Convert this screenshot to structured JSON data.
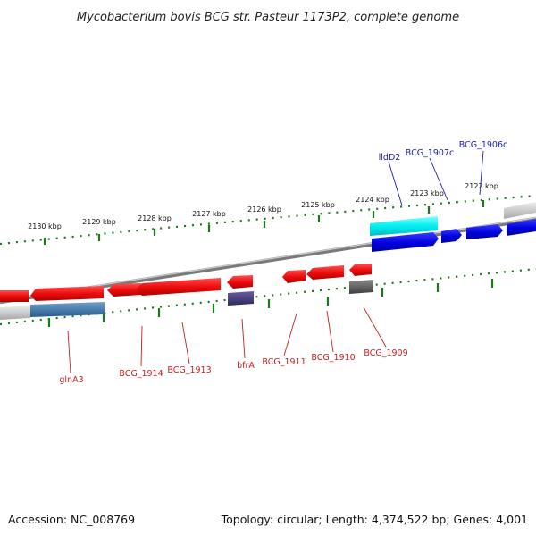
{
  "title": "Mycobacterium bovis BCG str. Pasteur 1173P2, complete genome",
  "footer": {
    "accession": "Accession: NC_008769",
    "summary": "Topology: circular; Length: 4,374,522 bp; Genes: 4,001"
  },
  "kbp_labels": [
    "2130 kbp",
    "2129 kbp",
    "2128 kbp",
    "2127 kbp",
    "2126 kbp",
    "2125 kbp",
    "2124 kbp",
    "2123 kbp",
    "2122 kbp"
  ],
  "gene_labels_top": [
    "lldD2",
    "BCG_1907c",
    "BCG_1906c"
  ],
  "gene_labels_bottom": [
    "glnA3",
    "BCG_1914",
    "BCG_1913",
    "bfrA",
    "BCG_1911",
    "BCG_1910",
    "BCG_1909"
  ],
  "colors": {
    "forward_gene": "#1010e0",
    "reverse_gene": "#ee1010",
    "tick": "#1a7a1a",
    "backbone": "#888888",
    "label_top": "#1a1ab0",
    "label_bottom": "#c81e1e"
  }
}
